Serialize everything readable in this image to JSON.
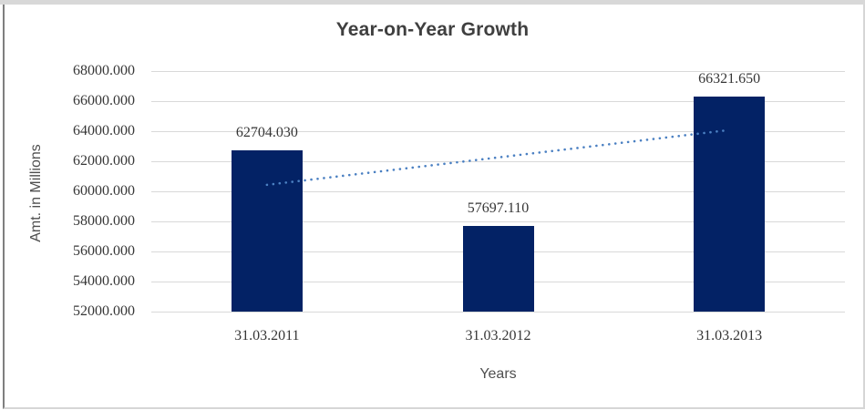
{
  "window": {
    "colors": {
      "strip": "#d8d8d8",
      "frame_dark": "#7f7f7f",
      "frame_light": "#d6d6d6",
      "background": "#ffffff"
    }
  },
  "chart_data": {
    "type": "bar",
    "title": "Year-on-Year Growth",
    "xlabel": "Years",
    "ylabel": "Amt. in Millions",
    "categories": [
      "31.03.2011",
      "31.03.2012",
      "31.03.2013"
    ],
    "values": [
      62704.03,
      57697.11,
      66321.65
    ],
    "value_labels": [
      "62704.030",
      "57697.110",
      "66321.650"
    ],
    "ylim": [
      52000,
      68000
    ],
    "yticks": [
      {
        "value": 52000,
        "label": "52000.000"
      },
      {
        "value": 54000,
        "label": "54000.000"
      },
      {
        "value": 56000,
        "label": "56000.000"
      },
      {
        "value": 58000,
        "label": "58000.000"
      },
      {
        "value": 60000,
        "label": "60000.000"
      },
      {
        "value": 62000,
        "label": "62000.000"
      },
      {
        "value": 64000,
        "label": "64000.000"
      },
      {
        "value": 66000,
        "label": "66000.000"
      },
      {
        "value": 68000,
        "label": "68000.000"
      }
    ],
    "grid": true,
    "legend": "none",
    "trendline": {
      "type": "linear",
      "style": "dotted",
      "start_value": 60432.1,
      "end_value": 64049.7
    },
    "colors": {
      "bar": "#032265",
      "trendline": "#4b80c2",
      "gridline": "#d9d9d9",
      "title": "#3f3f3f",
      "tick_label": "#363636",
      "data_label": "#363636",
      "axis_title": "#4f4f4f"
    }
  }
}
